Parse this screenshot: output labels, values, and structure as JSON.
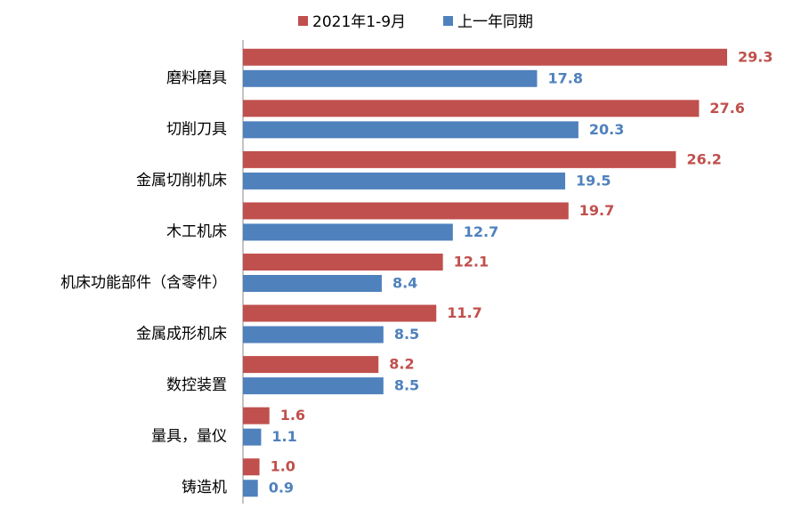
{
  "chart_data": {
    "type": "hbar",
    "categories": [
      "磨料磨具",
      "切削刀具",
      "金属切削机床",
      "木工机床",
      "机床功能部件（含零件）",
      "金属成形机床",
      "数控装置",
      "量具，量仪",
      "铸造机"
    ],
    "series": [
      {
        "name": "2021年1-9月",
        "color": "#c0504d",
        "values": [
          29.3,
          27.6,
          26.2,
          19.7,
          12.1,
          11.7,
          8.2,
          1.6,
          1.0
        ],
        "value_labels": [
          "29.3",
          "27.6",
          "26.2",
          "19.7",
          "12.1",
          "11.7",
          "8.2",
          "1.6",
          "1.0"
        ]
      },
      {
        "name": "上一年同期",
        "color": "#4f81bd",
        "values": [
          17.8,
          20.3,
          19.5,
          12.7,
          8.4,
          8.5,
          8.5,
          1.1,
          0.9
        ],
        "value_labels": [
          "17.8",
          "20.3",
          "19.5",
          "12.7",
          "8.4",
          "8.5",
          "8.5",
          "1.1",
          "0.9"
        ]
      }
    ],
    "legend": "top"
  }
}
